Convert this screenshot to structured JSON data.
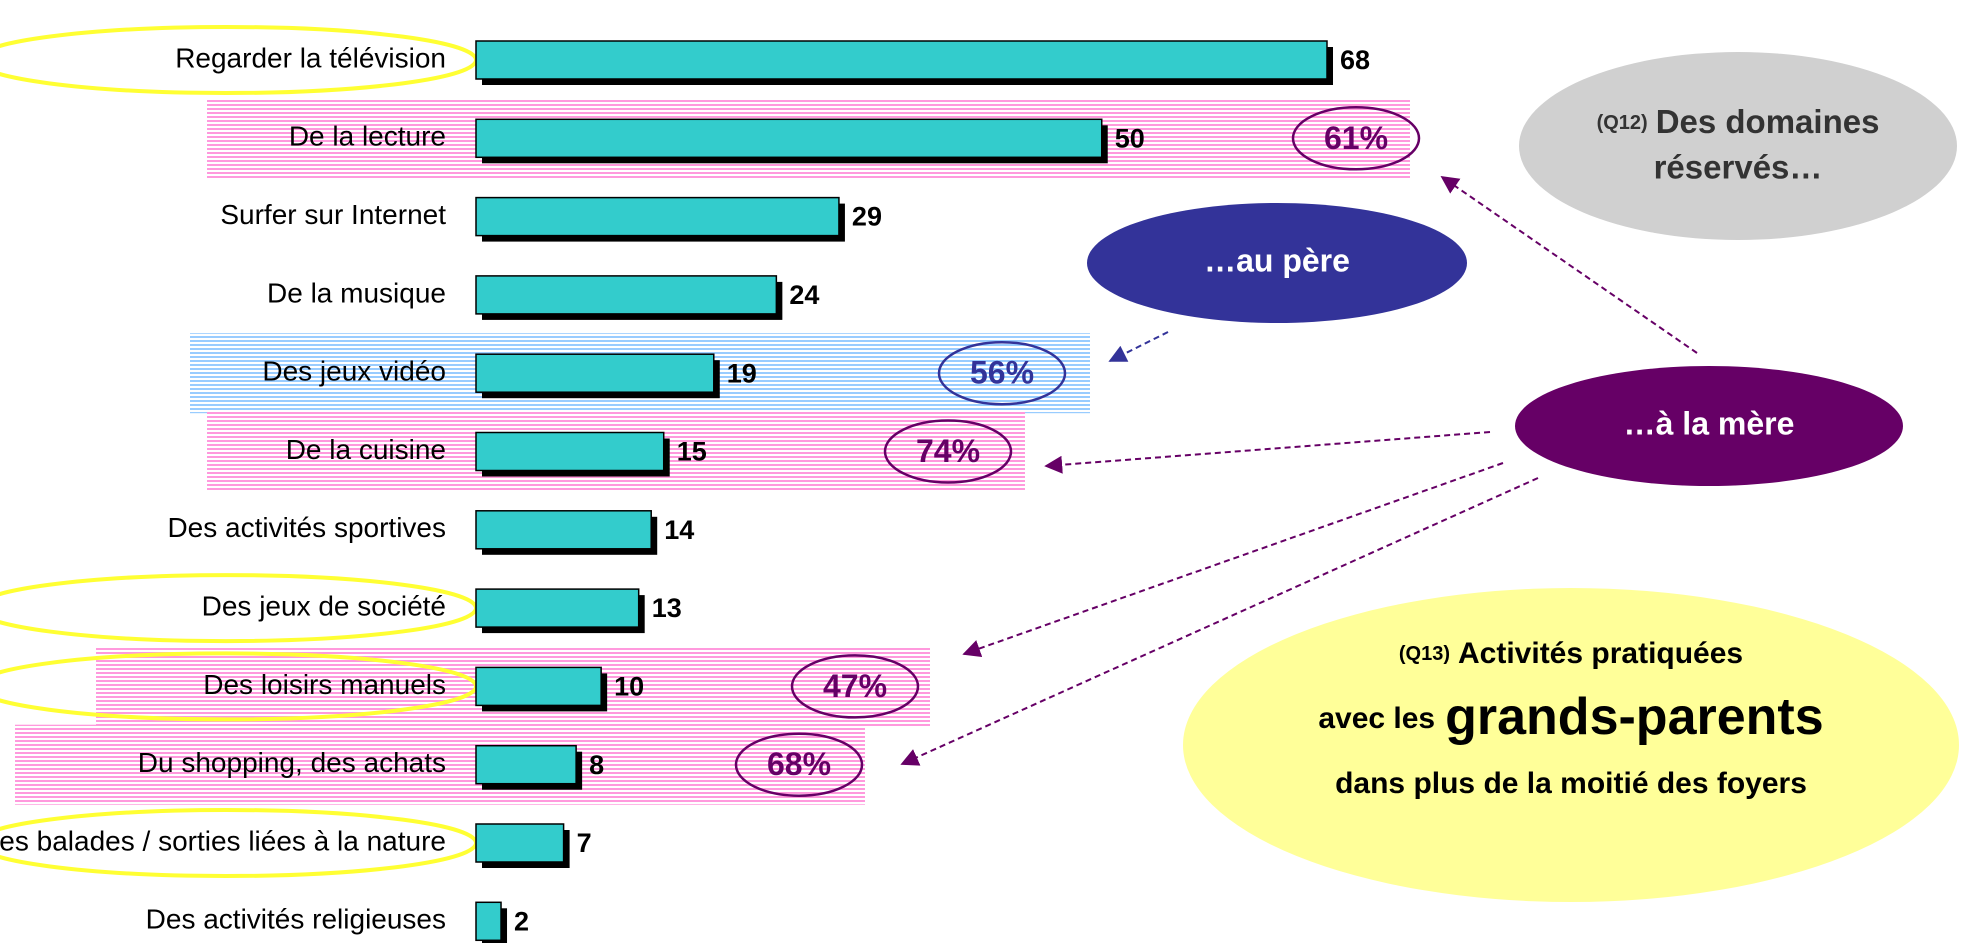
{
  "chart_data": {
    "type": "bar",
    "categories": [
      "Regarder la télévision",
      "De la lecture",
      "Surfer sur Internet",
      "De la musique",
      "Des jeux vidéo",
      "De la cuisine",
      "Des activités sportives",
      "Des jeux de société",
      "Des loisirs manuels",
      "Du shopping, des achats",
      "Des balades / sorties liées à la nature",
      "Des activités religieuses"
    ],
    "values": [
      68,
      50,
      29,
      24,
      19,
      15,
      14,
      13,
      10,
      8,
      7,
      2
    ],
    "color": "#33cccc",
    "shares": [
      null,
      61,
      null,
      null,
      56,
      74,
      null,
      null,
      47,
      68,
      null,
      null
    ],
    "share_labels": [
      null,
      "61%",
      null,
      null,
      "56%",
      "74%",
      null,
      null,
      "47%",
      "68%",
      null,
      null
    ],
    "highlight_colors": [
      null,
      "#ff99dd",
      null,
      null,
      "#99ccff",
      "#ff99dd",
      null,
      null,
      "#ff99dd",
      "#ff99dd",
      null,
      null
    ],
    "share_text_colors": [
      null,
      "#660066",
      null,
      null,
      "#333399",
      "#660066",
      null,
      null,
      "#660066",
      "#660066",
      null,
      null
    ],
    "circled": [
      true,
      false,
      false,
      false,
      false,
      false,
      false,
      true,
      true,
      false,
      true,
      false
    ],
    "bubbles": {
      "q12": {
        "code": "(Q12)",
        "line1": "Des domaines",
        "line2": "réservés…"
      },
      "father": "…au père",
      "mother": "…à la mère",
      "q13": {
        "code": "(Q13)",
        "line1": "Activités pratiquées",
        "line2a": "avec les",
        "line2b": "grands-parents",
        "line3": "dans plus de la moitié des foyers"
      }
    }
  }
}
